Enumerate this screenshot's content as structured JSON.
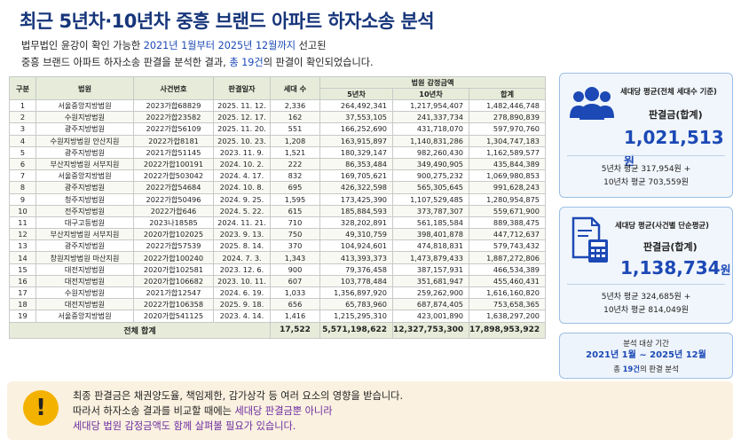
{
  "title": "최근 5년차·10년차 중흥 브랜드 아파트 하자소송 분석",
  "intro": {
    "l1_a": "법무법인 윤강이 확인 가능한 ",
    "l1_b": "2021년 1월부터 2025년 12월까지",
    "l1_c": " 선고된",
    "l2_a": "중흥 브랜드 아파트 하자소송 판결을 분석한 결과, ",
    "l2_b": "총 19건",
    "l2_c": "의 판결이 확인되었습니다."
  },
  "table": {
    "headers": {
      "no": "구분",
      "court": "법원",
      "case": "사건번호",
      "date": "판결일자",
      "units": "세대 수",
      "amount_group": "법원 감정금액",
      "y5": "5년차",
      "y10": "10년차",
      "sum": "합계"
    },
    "rows": [
      [
        "1",
        "서울중앙지방법원",
        "2023가합68829",
        "2025. 11. 12.",
        "2,336",
        "264,492,341",
        "1,217,954,407",
        "1,482,446,748"
      ],
      [
        "2",
        "수원지방법원",
        "2022가합23582",
        "2025. 12. 17.",
        "162",
        "37,553,105",
        "241,337,734",
        "278,890,839"
      ],
      [
        "3",
        "광주지방법원",
        "2022가합56109",
        "2025. 11. 20.",
        "551",
        "166,252,690",
        "431,718,070",
        "597,970,760"
      ],
      [
        "4",
        "수원지방법원 안산지원",
        "2022가합8181",
        "2025. 10. 23.",
        "1,208",
        "163,915,897",
        "1,140,831,286",
        "1,304,747,183"
      ],
      [
        "5",
        "광주지방법원",
        "2021가합51145",
        "2023. 11. 9.",
        "1,521",
        "180,329,147",
        "982,260,430",
        "1,162,589,577"
      ],
      [
        "6",
        "부산지방법원 서부지원",
        "2022가합100191",
        "2024. 10. 2.",
        "222",
        "86,353,484",
        "349,490,905",
        "435,844,389"
      ],
      [
        "7",
        "서울중앙지방법원",
        "2022가합503042",
        "2024. 4. 17.",
        "832",
        "169,705,621",
        "900,275,232",
        "1,069,980,853"
      ],
      [
        "8",
        "광주지방법원",
        "2022가합54684",
        "2024. 10. 8.",
        "695",
        "426,322,598",
        "565,305,645",
        "991,628,243"
      ],
      [
        "9",
        "청주지방법원",
        "2022가합50496",
        "2024. 9. 25.",
        "1,595",
        "173,425,390",
        "1,107,529,485",
        "1,280,954,875"
      ],
      [
        "10",
        "전주지방법원",
        "2022가합646",
        "2024. 5. 22.",
        "615",
        "185,884,593",
        "373,787,307",
        "559,671,900"
      ],
      [
        "11",
        "대구고등법원",
        "2023나18585",
        "2024. 11. 21.",
        "710",
        "328,202,891",
        "561,185,584",
        "889,388,475"
      ],
      [
        "12",
        "부산지방법원 서부지원",
        "2020가합102025",
        "2023. 9. 13.",
        "750",
        "49,310,759",
        "398,401,878",
        "447,712,637"
      ],
      [
        "13",
        "광주지방법원",
        "2022가합57539",
        "2025. 8. 14.",
        "370",
        "104,924,601",
        "474,818,831",
        "579,743,432"
      ],
      [
        "14",
        "창원지방법원 마산지원",
        "2022가합100240",
        "2024. 7. 3.",
        "1,343",
        "413,393,373",
        "1,473,879,433",
        "1,887,272,806"
      ],
      [
        "15",
        "대전지방법원",
        "2020가합102581",
        "2023. 12. 6.",
        "900",
        "79,376,458",
        "387,157,931",
        "466,534,389"
      ],
      [
        "16",
        "대전지방법원",
        "2020가합106682",
        "2023. 10. 11.",
        "607",
        "103,778,484",
        "351,681,947",
        "455,460,431"
      ],
      [
        "17",
        "수원지방법원",
        "2021가합12547",
        "2024. 6. 19.",
        "1,033",
        "1,356,897,920",
        "259,262,900",
        "1,616,160,820"
      ],
      [
        "18",
        "대전지방법원",
        "2022가합106358",
        "2025. 9. 18.",
        "656",
        "65,783,960",
        "687,874,405",
        "753,658,365"
      ],
      [
        "19",
        "서울중앙지방법원",
        "2020가합541125",
        "2023. 4. 14.",
        "1,416",
        "1,215,295,310",
        "423,001,890",
        "1,638,297,200"
      ]
    ],
    "total": {
      "label": "전체 합계",
      "units": "17,522",
      "y5": "5,571,198,622",
      "y10": "12,327,753,300",
      "sum": "17,898,953,922"
    }
  },
  "card1": {
    "heading": "세대당 평균(전체 세대수 기준)",
    "sub": "판결금(합계)",
    "value": "1,021,513",
    "unit": "원",
    "foot1": "5년차 평균 317,954원 +",
    "foot2": "10년차 평균 703,559원"
  },
  "card2": {
    "heading": "세대당 평균(사건별 단순평균)",
    "sub": "판결금(합계)",
    "value": "1,138,734",
    "unit": "원",
    "foot1": "5년차 평균 324,685원 +",
    "foot2": "10년차 평균 814,049원"
  },
  "card3": {
    "line1": "분석 대상 기간",
    "line2": "2021년 1월 ~ 2025년 12월",
    "line3_a": "총 ",
    "line3_b": "19건",
    "line3_c": "의 판결 분석"
  },
  "note": {
    "icon": "!",
    "l1": "최종 판결금은 채권양도율, 책임제한, 감가상각 등 여러 요소의 영향을 받습니다.",
    "l2_a": "따라서 하자소송 결과를 비교할 때에는 ",
    "l2_b": "세대당 판결금뿐 아니라",
    "l3": "세대당 법원 감정금액도 함께 살펴볼 필요가 있습니다."
  },
  "colors": {
    "title": "#16357a",
    "accent_blue": "#1c49b5",
    "header_bg": "#e6ecd9",
    "note_bg": "#fbf1e0",
    "warn": "#f4b200",
    "note_highlight": "#6a2ba0"
  }
}
